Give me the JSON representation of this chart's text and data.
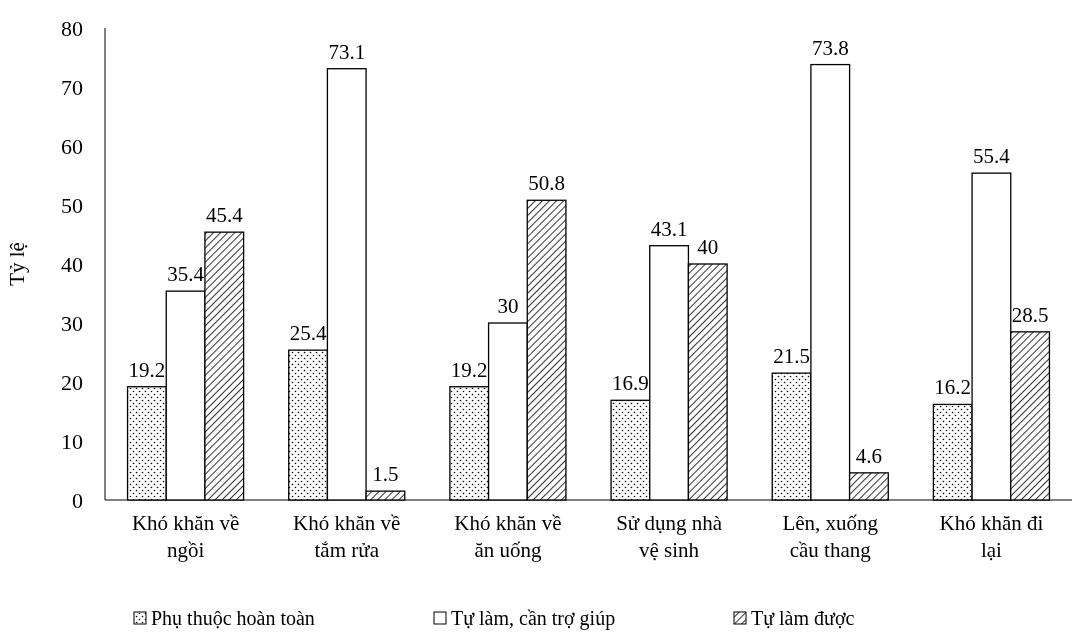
{
  "chart_data": {
    "type": "bar",
    "ylabel": "Tỷ lệ",
    "categories": [
      "Khó khăn về ngồi",
      "Khó khăn về tắm rửa",
      "Khó khăn về ăn uống",
      "Sử dụng nhà vệ sinh",
      "Lên, xuống cầu thang",
      "Khó khăn đi lại"
    ],
    "series": [
      {
        "name": "Phụ thuộc hoàn toàn",
        "color": "#ffffff",
        "values": [
          19.2,
          25.4,
          19.2,
          16.9,
          21.5,
          16.2
        ]
      },
      {
        "name": "Tự làm, cần trợ giúp",
        "color": "#ffffff",
        "values": [
          35.4,
          73.1,
          30,
          43.1,
          73.8,
          55.4
        ]
      },
      {
        "name": "Tự làm được",
        "color": "#ffffff",
        "values": [
          45.4,
          1.5,
          50.8,
          40,
          4.6,
          28.5
        ]
      }
    ],
    "ylim": [
      0,
      80
    ],
    "yticks": [
      0,
      10,
      20,
      30,
      40,
      50,
      60,
      70,
      80
    ],
    "data_labels": true,
    "legend": "bottom",
    "grid": false
  }
}
